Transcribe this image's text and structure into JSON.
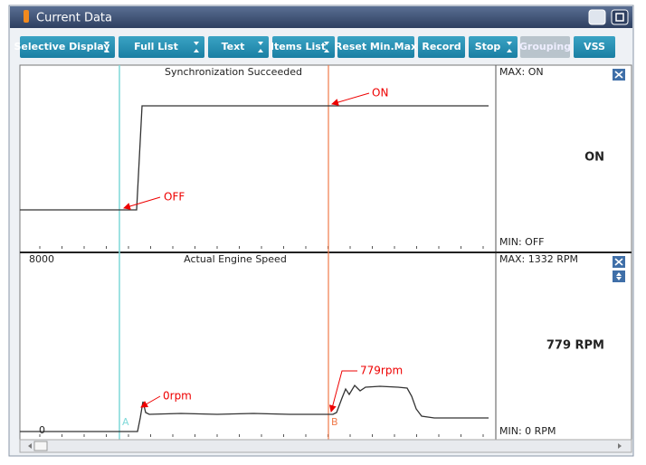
{
  "window": {
    "title": "Current Data"
  },
  "toolbar": {
    "buttons": [
      {
        "label": "Selective Display",
        "dropdown": true,
        "enabled": true
      },
      {
        "label": "Full List",
        "dropdown": true,
        "enabled": true
      },
      {
        "label": "Text",
        "dropdown": true,
        "enabled": true
      },
      {
        "label": "Items List",
        "dropdown": true,
        "enabled": true
      },
      {
        "label": "Reset Min.Max",
        "dropdown": false,
        "enabled": true
      },
      {
        "label": "Record",
        "dropdown": false,
        "enabled": true
      },
      {
        "label": "Stop",
        "dropdown": true,
        "enabled": true
      },
      {
        "label": "Grouping",
        "dropdown": false,
        "enabled": false
      },
      {
        "label": "VSS",
        "dropdown": false,
        "enabled": true
      }
    ]
  },
  "panels": [
    {
      "title": "Synchronization Succeeded",
      "max": "MAX: ON",
      "current": "ON",
      "min": "MIN: OFF",
      "annotations": [
        "ON",
        "OFF"
      ]
    },
    {
      "title": "Actual Engine Speed",
      "axis_top": "8000",
      "axis_bottom": "0",
      "max": "MAX:  1332 RPM",
      "current": "779 RPM",
      "min": "MIN:    0 RPM",
      "annotations": [
        "0rpm",
        "779rpm"
      ],
      "cursors": [
        "A",
        "B"
      ]
    }
  ]
}
